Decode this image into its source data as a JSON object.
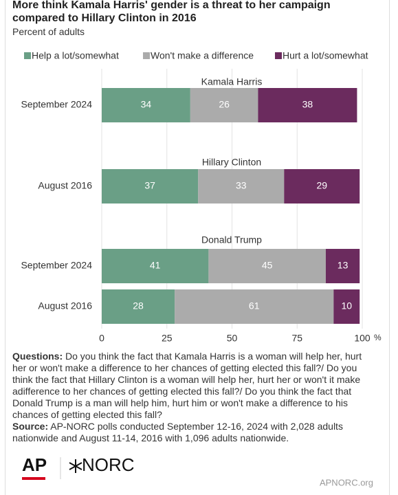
{
  "chart_data": {
    "type": "stacked-bar",
    "orientation": "horizontal",
    "title": "More think Kamala Harris' gender is a threat to her campaign compared to Hillary Clinton in 2016",
    "subtitle": "Percent of adults",
    "legend": "top",
    "groups": [
      {
        "name": "Kamala Harris",
        "categories": [
          "September 2024"
        ]
      },
      {
        "name": "Hillary Clinton",
        "categories": [
          "August 2016"
        ]
      },
      {
        "name": "Donald Trump",
        "categories": [
          "September 2024",
          "August 2016"
        ]
      }
    ],
    "series": [
      {
        "name": "Help a lot/somewhat",
        "color": "#6a9f86",
        "values": [
          34,
          37,
          41,
          28
        ]
      },
      {
        "name": "Won't make a difference",
        "color": "#ababab",
        "values": [
          26,
          33,
          45,
          61
        ]
      },
      {
        "name": "Hurt a lot/somewhat",
        "color": "#6b2b5e",
        "values": [
          38,
          29,
          13,
          10
        ]
      }
    ],
    "xlim": [
      0,
      100
    ],
    "xticks": [
      0,
      25,
      50,
      75,
      100
    ],
    "x_unit": "%",
    "grid": true
  },
  "notes": {
    "questions_label": "Questions:",
    "questions": "Do you think the fact that Kamala Harris is a woman will help her, hurt her or won't make a difference to her chances of getting elected this fall?/ Do you think the fact that Hillary Clinton is a woman will help her, hurt her or won't it make adifference to her chances of getting elected this fall?/ Do you think the fact that Donald Trump is a man will help him, hurt him or won't make a difference to his chances of getting elected this fall?",
    "source_label": "Source:",
    "source": "AP-NORC polls conducted September 12-16, 2024 with 2,028 adults nationwide and August 11-14, 2016 with 1,096 adults nationwide."
  },
  "branding": {
    "ap": "AP",
    "norc": "NORC",
    "site": "APNORC.org"
  }
}
